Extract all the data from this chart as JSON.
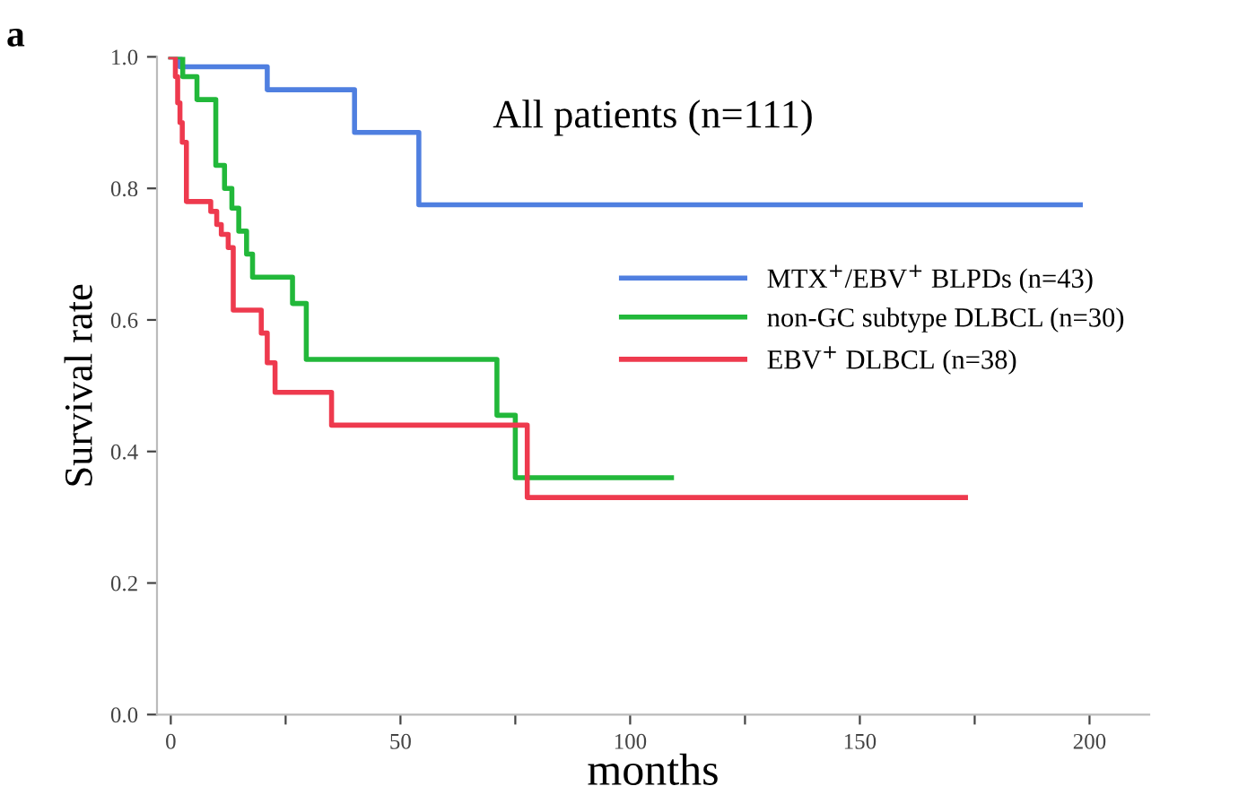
{
  "chart_data": {
    "type": "step",
    "title": "All patients (n=111)",
    "xlabel": "months",
    "ylabel": "Survival rate",
    "annotations": [
      "a"
    ],
    "xlim": [
      -3,
      213
    ],
    "ylim": [
      0,
      1.0
    ],
    "xticks": [
      0,
      {
        "value": 25,
        "label": null
      },
      50,
      {
        "value": 75,
        "label": null
      },
      100,
      {
        "value": 125,
        "label": null
      },
      150,
      {
        "value": 175,
        "label": null
      },
      200
    ],
    "yticks": [
      {
        "value": 0,
        "label": "0.0"
      },
      0.2,
      0.4,
      0.6,
      0.8,
      {
        "value": 1,
        "label": "1.0"
      }
    ],
    "legend": "right",
    "grid": false,
    "marker": "none",
    "line_style": "solid",
    "series": [
      {
        "name": "MTX$^{+}$/EBV$^{+}$ BLPDs (n=43)",
        "color": "#4f7fe0",
        "x": [
          0,
          2,
          21,
          40,
          54,
          198
        ],
        "values": [
          1.0,
          0.985,
          0.95,
          0.885,
          0.775,
          0.775
        ]
      },
      {
        "name": "non-GC subtype DLBCL (n=30)",
        "color": "#22b83a",
        "x": [
          0,
          2.6,
          5.7,
          9.8,
          11.7,
          13.3,
          14.8,
          16.5,
          17.8,
          26.5,
          29.5,
          71,
          75,
          109
        ],
        "values": [
          1.0,
          0.97,
          0.935,
          0.835,
          0.8,
          0.77,
          0.735,
          0.7,
          0.665,
          0.625,
          0.54,
          0.455,
          0.36,
          0.36
        ]
      },
      {
        "name": "EBV$^{+}$ DLBCL (n=38)",
        "color": "#ee3a4e",
        "x": [
          0,
          1,
          1.5,
          2,
          2.5,
          3.4,
          8.7,
          10,
          11,
          12.5,
          13.6,
          19.7,
          21,
          22.7,
          35,
          77.6,
          173
        ],
        "values": [
          1.0,
          0.97,
          0.93,
          0.9,
          0.87,
          0.78,
          0.765,
          0.745,
          0.73,
          0.71,
          0.615,
          0.58,
          0.535,
          0.49,
          0.44,
          0.33,
          0.33
        ]
      }
    ]
  }
}
